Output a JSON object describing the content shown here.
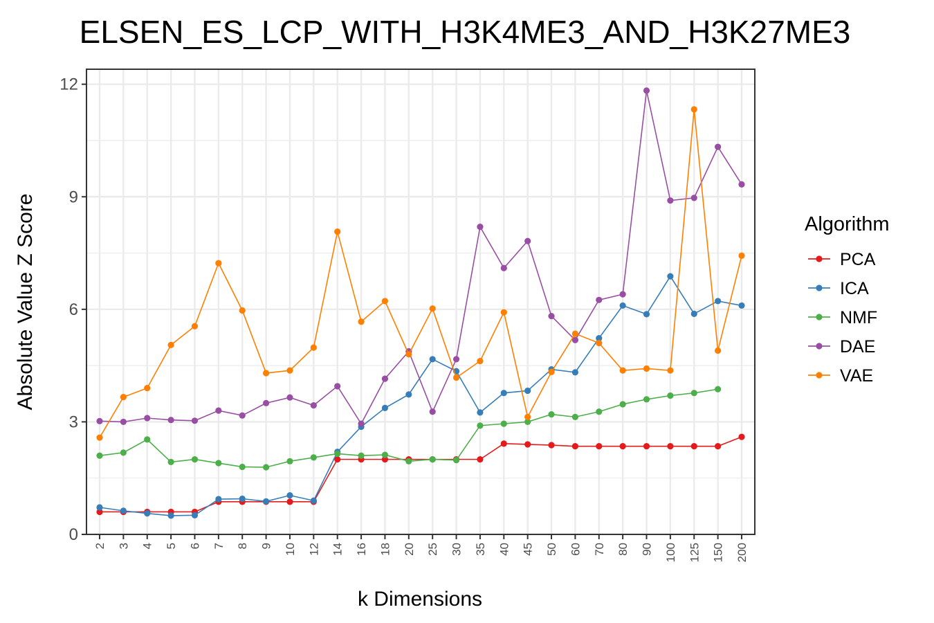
{
  "chart_data": {
    "type": "line",
    "title": "ELSEN_ES_LCP_WITH_H3K4ME3_AND_H3K27ME3",
    "xlabel": "k Dimensions",
    "ylabel": "Absolute Value Z Score",
    "ylim": [
      0,
      12.4
    ],
    "yticks": [
      0,
      3,
      6,
      9,
      12
    ],
    "grid": true,
    "legend_title": "Algorithm",
    "legend_position": "right",
    "categories": [
      "2",
      "3",
      "4",
      "5",
      "6",
      "7",
      "8",
      "9",
      "10",
      "12",
      "14",
      "16",
      "18",
      "20",
      "25",
      "30",
      "35",
      "40",
      "45",
      "50",
      "60",
      "70",
      "80",
      "90",
      "100",
      "125",
      "150",
      "200"
    ],
    "series": [
      {
        "name": "PCA",
        "color": "#e41a1c",
        "values": [
          0.6,
          0.6,
          0.6,
          0.6,
          0.6,
          0.87,
          0.87,
          0.87,
          0.87,
          0.87,
          2.0,
          2.0,
          2.0,
          2.0,
          2.0,
          2.0,
          2.0,
          2.42,
          2.4,
          2.38,
          2.35,
          2.35,
          2.35,
          2.35,
          2.35,
          2.35,
          2.35,
          2.6
        ]
      },
      {
        "name": "ICA",
        "color": "#377eb8",
        "values": [
          0.72,
          0.63,
          0.56,
          0.5,
          0.51,
          0.94,
          0.95,
          0.88,
          1.04,
          0.9,
          2.2,
          2.87,
          3.37,
          3.73,
          4.67,
          4.35,
          3.25,
          3.77,
          3.83,
          4.4,
          4.32,
          5.23,
          6.1,
          5.87,
          6.88,
          5.88,
          6.22,
          6.1
        ]
      },
      {
        "name": "NMF",
        "color": "#4daf4a",
        "values": [
          2.1,
          2.18,
          2.53,
          1.93,
          2.0,
          1.9,
          1.8,
          1.79,
          1.95,
          2.05,
          2.15,
          2.1,
          2.12,
          1.95,
          2.0,
          1.98,
          2.9,
          2.95,
          3.0,
          3.2,
          3.13,
          3.27,
          3.47,
          3.6,
          3.7,
          3.77,
          3.87,
          null
        ]
      },
      {
        "name": "DAE",
        "color": "#984ea3",
        "values": [
          3.02,
          3.0,
          3.1,
          3.05,
          3.03,
          3.3,
          3.17,
          3.5,
          3.65,
          3.44,
          3.95,
          2.95,
          4.15,
          4.88,
          3.27,
          4.67,
          8.2,
          7.1,
          7.82,
          5.82,
          5.18,
          6.25,
          6.4,
          11.83,
          8.9,
          8.97,
          10.33,
          9.33
        ]
      },
      {
        "name": "VAE",
        "color": "#ff7f00",
        "values": [
          2.58,
          3.66,
          3.9,
          5.05,
          5.55,
          7.23,
          5.97,
          4.3,
          4.37,
          4.98,
          8.07,
          5.67,
          6.22,
          4.8,
          6.02,
          4.18,
          4.62,
          5.92,
          3.13,
          4.33,
          5.35,
          5.1,
          4.37,
          4.42,
          4.37,
          11.33,
          4.9,
          7.43
        ]
      }
    ]
  }
}
